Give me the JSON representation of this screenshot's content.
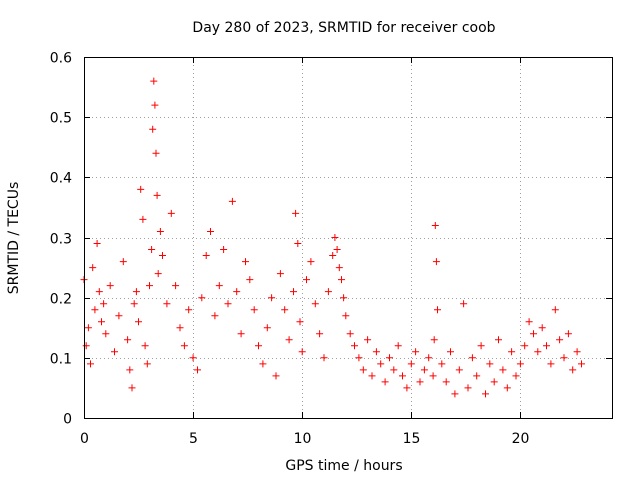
{
  "chart_data": {
    "type": "scatter",
    "title": "Day 280 of 2023, SRMTID for receiver coob",
    "xlabel": "GPS time / hours",
    "ylabel": "SRMTID / TECUs",
    "xlim": [
      0,
      24.2
    ],
    "ylim": [
      0,
      0.6
    ],
    "xticks": [
      0,
      5,
      10,
      15,
      20
    ],
    "xtick_labels": [
      "0",
      "5",
      "10",
      "15",
      "20"
    ],
    "yticks": [
      0,
      0.1,
      0.2,
      0.3,
      0.4,
      0.5,
      0.6
    ],
    "ytick_labels": [
      "0",
      "0.1",
      "0.2",
      "0.3",
      "0.4",
      "0.5",
      "0.6"
    ],
    "grid": true,
    "marker": "+",
    "series": [
      {
        "name": "SRMTID",
        "color": "#ff0000",
        "x": [
          0.0,
          0.1,
          0.2,
          0.3,
          0.4,
          0.5,
          0.6,
          0.7,
          0.8,
          0.9,
          1.0,
          1.2,
          1.4,
          1.6,
          1.8,
          2.0,
          2.1,
          2.2,
          2.3,
          2.4,
          2.5,
          2.6,
          2.7,
          2.8,
          2.9,
          3.0,
          3.1,
          3.15,
          3.2,
          3.25,
          3.3,
          3.35,
          3.4,
          3.5,
          3.6,
          3.8,
          4.0,
          4.2,
          4.4,
          4.6,
          4.8,
          5.0,
          5.2,
          5.4,
          5.6,
          5.8,
          6.0,
          6.2,
          6.4,
          6.6,
          6.8,
          7.0,
          7.2,
          7.4,
          7.6,
          7.8,
          8.0,
          8.2,
          8.4,
          8.6,
          8.8,
          9.0,
          9.2,
          9.4,
          9.6,
          9.7,
          9.8,
          9.9,
          10.0,
          10.2,
          10.4,
          10.6,
          10.8,
          11.0,
          11.2,
          11.4,
          11.5,
          11.6,
          11.7,
          11.8,
          11.9,
          12.0,
          12.2,
          12.4,
          12.6,
          12.8,
          13.0,
          13.2,
          13.4,
          13.6,
          13.8,
          14.0,
          14.2,
          14.4,
          14.6,
          14.8,
          15.0,
          15.2,
          15.4,
          15.6,
          15.8,
          16.0,
          16.05,
          16.1,
          16.15,
          16.2,
          16.4,
          16.6,
          16.8,
          17.0,
          17.2,
          17.4,
          17.6,
          17.8,
          18.0,
          18.2,
          18.4,
          18.6,
          18.8,
          19.0,
          19.2,
          19.4,
          19.6,
          19.8,
          20.0,
          20.2,
          20.4,
          20.6,
          20.8,
          21.0,
          21.2,
          21.4,
          21.6,
          21.8,
          22.0,
          22.2,
          22.4,
          22.6,
          22.8
        ],
        "y": [
          0.23,
          0.12,
          0.15,
          0.09,
          0.25,
          0.18,
          0.29,
          0.21,
          0.16,
          0.19,
          0.14,
          0.22,
          0.11,
          0.17,
          0.26,
          0.13,
          0.08,
          0.05,
          0.19,
          0.21,
          0.16,
          0.38,
          0.33,
          0.12,
          0.09,
          0.22,
          0.28,
          0.48,
          0.56,
          0.52,
          0.44,
          0.37,
          0.24,
          0.31,
          0.27,
          0.19,
          0.34,
          0.22,
          0.15,
          0.12,
          0.18,
          0.1,
          0.08,
          0.2,
          0.27,
          0.31,
          0.17,
          0.22,
          0.28,
          0.19,
          0.36,
          0.21,
          0.14,
          0.26,
          0.23,
          0.18,
          0.12,
          0.09,
          0.15,
          0.2,
          0.07,
          0.24,
          0.18,
          0.13,
          0.21,
          0.34,
          0.29,
          0.16,
          0.11,
          0.23,
          0.26,
          0.19,
          0.14,
          0.1,
          0.21,
          0.27,
          0.3,
          0.28,
          0.25,
          0.23,
          0.2,
          0.17,
          0.14,
          0.12,
          0.1,
          0.08,
          0.13,
          0.07,
          0.11,
          0.09,
          0.06,
          0.1,
          0.08,
          0.12,
          0.07,
          0.05,
          0.09,
          0.11,
          0.06,
          0.08,
          0.1,
          0.07,
          0.13,
          0.32,
          0.26,
          0.18,
          0.09,
          0.06,
          0.11,
          0.04,
          0.08,
          0.19,
          0.05,
          0.1,
          0.07,
          0.12,
          0.04,
          0.09,
          0.06,
          0.13,
          0.08,
          0.05,
          0.11,
          0.07,
          0.09,
          0.12,
          0.16,
          0.14,
          0.11,
          0.15,
          0.12,
          0.09,
          0.18,
          0.13,
          0.1,
          0.14,
          0.08,
          0.11,
          0.09
        ]
      }
    ]
  }
}
